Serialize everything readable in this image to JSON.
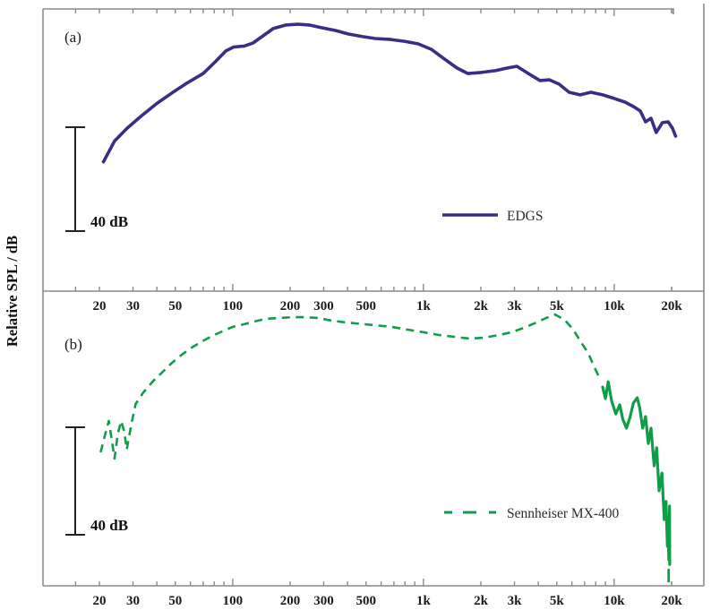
{
  "labels": {
    "panel_a": "(a)",
    "panel_b": "(b)",
    "scale_bar": "40 dB",
    "ylabel": "Relative SPL / dB"
  },
  "legend": {
    "a": "EDGS",
    "b": "Sennheiser MX-400"
  },
  "colors": {
    "edgs": "#3d2b85",
    "sennheiser": "#0f9d48",
    "frame": "#8a8a8a",
    "scalebar": "#222222",
    "text": "#1a1a1a"
  },
  "chart_data": [
    {
      "panel": "a",
      "type": "line",
      "xscale": "log",
      "x_unit": "Hz",
      "ylabel": "Relative SPL / dB",
      "x_tick_labels": [
        "20",
        "30",
        "50",
        "100",
        "200",
        "300",
        "500",
        "1k",
        "2k",
        "3k",
        "5k",
        "10k",
        "20k"
      ],
      "x_tick_values": [
        20,
        30,
        50,
        100,
        200,
        300,
        500,
        1000,
        2000,
        3000,
        5000,
        10000,
        20000
      ],
      "x_range_hz": [
        11,
        29000
      ],
      "scale_bar_db": 40,
      "grid": false,
      "legend_position": "center-right",
      "series": [
        {
          "name": "EDGS",
          "style": "solid",
          "color": "#3d2b85",
          "points_hz_db": [
            [
              21,
              -53
            ],
            [
              24,
              -45
            ],
            [
              28,
              -40
            ],
            [
              33,
              -35.5
            ],
            [
              40,
              -30.5
            ],
            [
              48,
              -26.5
            ],
            [
              58,
              -22.5
            ],
            [
              70,
              -19
            ],
            [
              81,
              -14.5
            ],
            [
              92,
              -10.3
            ],
            [
              101,
              -8.8
            ],
            [
              115,
              -8.4
            ],
            [
              128,
              -7.2
            ],
            [
              141,
              -5
            ],
            [
              163,
              -1.7
            ],
            [
              190,
              -0.3
            ],
            [
              220,
              0
            ],
            [
              252,
              -0.3
            ],
            [
              295,
              -1.4
            ],
            [
              345,
              -2.4
            ],
            [
              405,
              -3.8
            ],
            [
              480,
              -4.8
            ],
            [
              560,
              -5.5
            ],
            [
              675,
              -5.9
            ],
            [
              795,
              -6.6
            ],
            [
              940,
              -7.6
            ],
            [
              1100,
              -9.7
            ],
            [
              1290,
              -13.4
            ],
            [
              1500,
              -16.9
            ],
            [
              1710,
              -19
            ],
            [
              2000,
              -18.6
            ],
            [
              2380,
              -17.9
            ],
            [
              2740,
              -16.9
            ],
            [
              3090,
              -16.2
            ],
            [
              3550,
              -19
            ],
            [
              4080,
              -21.7
            ],
            [
              4580,
              -21.4
            ],
            [
              5150,
              -23.1
            ],
            [
              5800,
              -26.2
            ],
            [
              6630,
              -27.2
            ],
            [
              7550,
              -26.2
            ],
            [
              8710,
              -27.2
            ],
            [
              10000,
              -28.6
            ],
            [
              11400,
              -30
            ],
            [
              12600,
              -31.7
            ],
            [
              13700,
              -33.4
            ],
            [
              14600,
              -37.6
            ],
            [
              15600,
              -36.2
            ],
            [
              16600,
              -41.7
            ],
            [
              17900,
              -37.9
            ],
            [
              19200,
              -37.6
            ],
            [
              20200,
              -40
            ],
            [
              21000,
              -43.1
            ]
          ]
        }
      ]
    },
    {
      "panel": "b",
      "type": "line",
      "xscale": "log",
      "x_unit": "Hz",
      "ylabel": "Relative SPL / dB",
      "x_tick_labels": [
        "20",
        "30",
        "50",
        "100",
        "200",
        "300",
        "500",
        "1k",
        "2k",
        "3k",
        "5k",
        "10k",
        "20k"
      ],
      "x_tick_values": [
        20,
        30,
        50,
        100,
        200,
        300,
        500,
        1000,
        2000,
        3000,
        5000,
        10000,
        20000
      ],
      "x_range_hz": [
        11,
        29000
      ],
      "scale_bar_db": 40,
      "grid": false,
      "legend_position": "center-right",
      "series": [
        {
          "name": "Sennheiser MX-400",
          "style": "dashed",
          "color": "#0f9d48",
          "points_hz_db": [
            [
              20.3,
              -51
            ],
            [
              21.5,
              -44
            ],
            [
              22.4,
              -39.3
            ],
            [
              23.3,
              -47
            ],
            [
              24,
              -53.3
            ],
            [
              25,
              -44
            ],
            [
              26,
              -39.3
            ],
            [
              27,
              -43.3
            ],
            [
              27.8,
              -50
            ],
            [
              29.5,
              -40
            ],
            [
              31,
              -33
            ],
            [
              34,
              -28.7
            ],
            [
              38,
              -24.7
            ],
            [
              43,
              -21
            ],
            [
              48,
              -17.7
            ],
            [
              54,
              -14.7
            ],
            [
              61,
              -12
            ],
            [
              69,
              -9.7
            ],
            [
              78,
              -7.7
            ],
            [
              88,
              -6
            ],
            [
              100,
              -4.3
            ],
            [
              115,
              -3.3
            ],
            [
              130,
              -2.3
            ],
            [
              150,
              -1.3
            ],
            [
              175,
              -1
            ],
            [
              205,
              -0.7
            ],
            [
              240,
              -0.7
            ],
            [
              280,
              -1
            ],
            [
              330,
              -2
            ],
            [
              400,
              -2.7
            ],
            [
              470,
              -3.2
            ],
            [
              560,
              -3.7
            ],
            [
              680,
              -4.3
            ],
            [
              820,
              -5.3
            ],
            [
              1000,
              -6.3
            ],
            [
              1200,
              -7.3
            ],
            [
              1450,
              -8
            ],
            [
              1750,
              -8.7
            ],
            [
              2100,
              -8.3
            ],
            [
              2500,
              -7.3
            ],
            [
              2900,
              -6.3
            ],
            [
              3350,
              -4.7
            ],
            [
              3900,
              -2.7
            ],
            [
              4400,
              -1
            ],
            [
              4900,
              0.3
            ],
            [
              5500,
              -1.7
            ],
            [
              6100,
              -5.3
            ],
            [
              6700,
              -10
            ],
            [
              7300,
              -14
            ],
            [
              7800,
              -18.7
            ],
            [
              8300,
              -22.7
            ]
          ],
          "noisy_tail_hz_db": [
            [
              8700,
              -26.7
            ],
            [
              9000,
              -31
            ],
            [
              9300,
              -24.7
            ],
            [
              9700,
              -32
            ],
            [
              10200,
              -36.7
            ],
            [
              10700,
              -33.3
            ],
            [
              11100,
              -38.7
            ],
            [
              11600,
              -42
            ],
            [
              12100,
              -38
            ],
            [
              12600,
              -32.7
            ],
            [
              13200,
              -30.7
            ],
            [
              13600,
              -34.3
            ],
            [
              14100,
              -42
            ],
            [
              14600,
              -37.7
            ],
            [
              15100,
              -47.7
            ],
            [
              15600,
              -42
            ],
            [
              16200,
              -56
            ],
            [
              16700,
              -49.3
            ],
            [
              17200,
              -65.3
            ],
            [
              17800,
              -58.7
            ],
            [
              18300,
              -76
            ],
            [
              18700,
              -69.3
            ],
            [
              19000,
              -86
            ],
            [
              19150,
              -77.7
            ],
            [
              19350,
              -91
            ],
            [
              19500,
              -71
            ],
            [
              19550,
              -92.7
            ]
          ],
          "tail_end_dash_hz_db": [
            [
              19300,
              -94.7
            ],
            [
              19300,
              -99
            ]
          ]
        }
      ]
    }
  ]
}
